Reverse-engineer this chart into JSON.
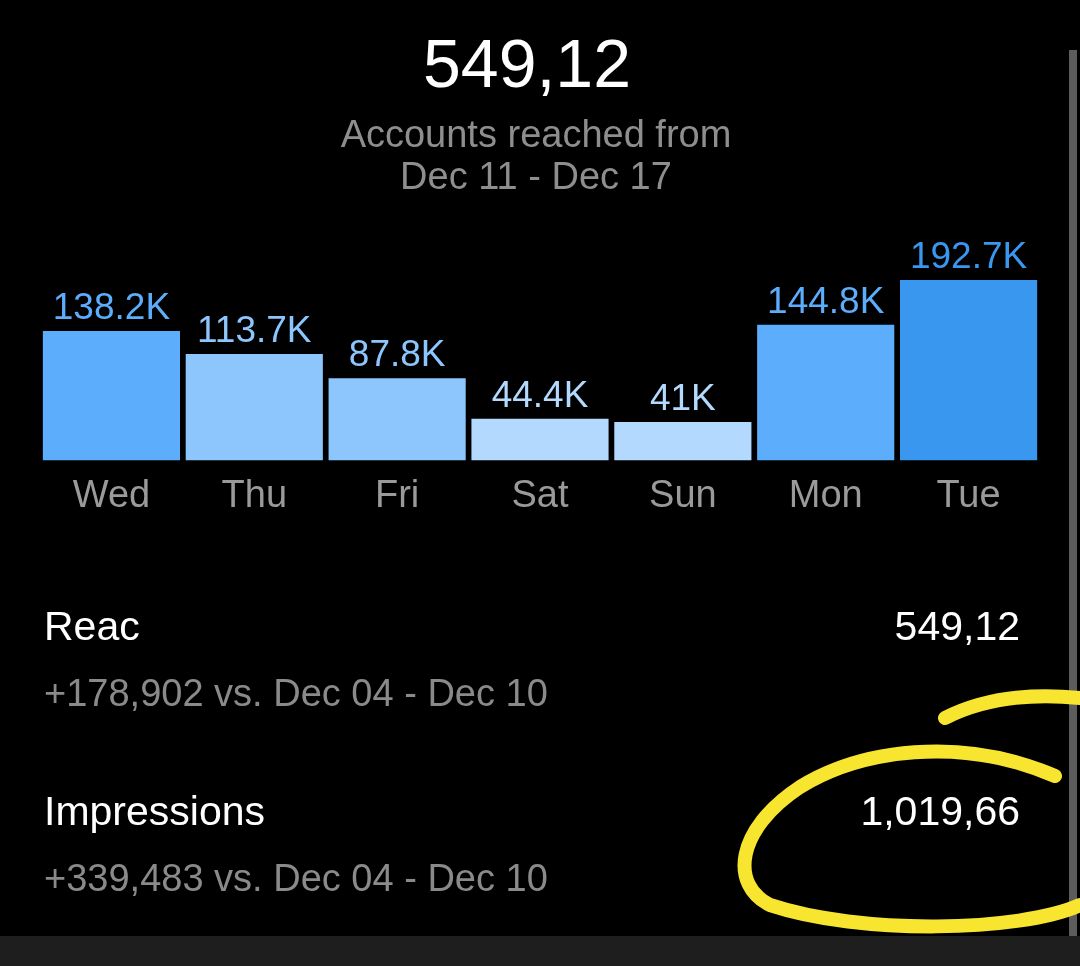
{
  "chart_data": {
    "type": "bar",
    "title": "549,12",
    "subtitle": "Accounts reached from Dec 11 - Dec 17",
    "categories": [
      "Wed",
      "Thu",
      "Fri",
      "Sat",
      "Sun",
      "Mon",
      "Tue"
    ],
    "values": [
      138.2,
      113.7,
      87.8,
      44.4,
      41,
      144.8,
      192.7
    ],
    "value_labels": [
      "138.2K",
      "113.7K",
      "87.8K",
      "44.4K",
      "41K",
      "144.8K",
      "192.7K"
    ],
    "colors": [
      "#5cadfc",
      "#8dc6fd",
      "#8dc6fd",
      "#b3d9fe",
      "#b3d9fe",
      "#5cadfc",
      "#3997ef"
    ],
    "tick_labels": "x",
    "annotations": [
      "Reac",
      "549,12",
      "+178,902 vs. Dec 04 - Dec 10",
      "Impressions",
      "1,019,66",
      "+339,483 vs. Dec 04 - Dec 10"
    ]
  }
}
